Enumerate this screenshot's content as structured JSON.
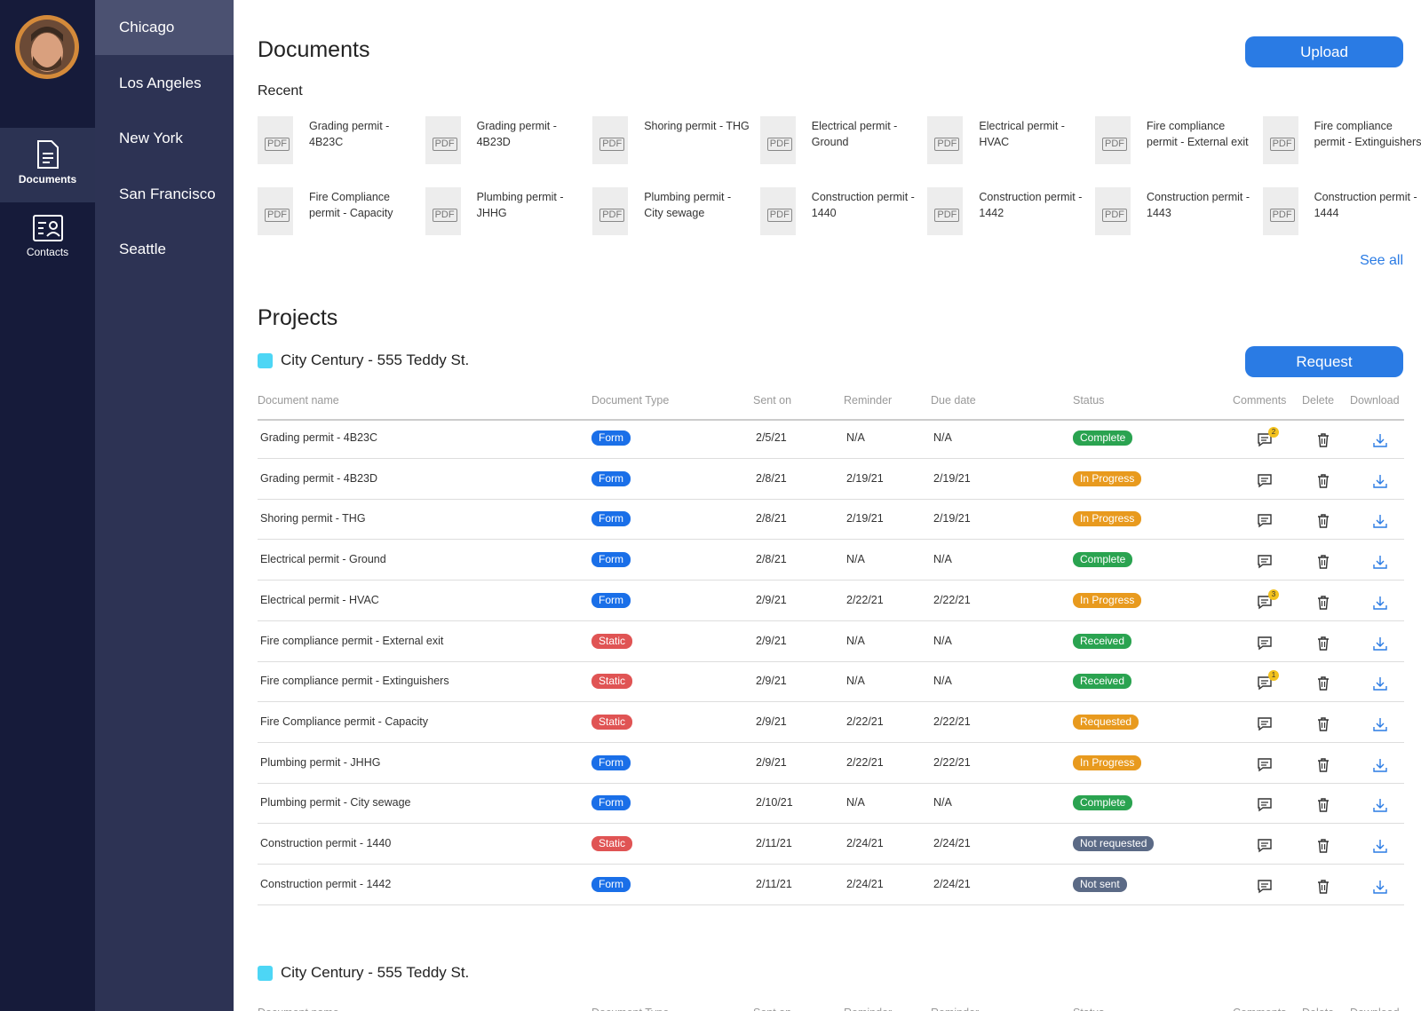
{
  "sidebar": {
    "nav": [
      "Documents",
      "Contacts"
    ],
    "cities": [
      "Chicago",
      "Los Angeles",
      "New York",
      "San Francisco",
      "Seattle"
    ]
  },
  "documents": {
    "title": "Documents",
    "upload": "Upload",
    "recent_label": "Recent",
    "pdf_label": "PDF",
    "see_all": "See all",
    "recent": [
      "Grading permit - 4B23C",
      "Grading permit - 4B23D",
      "Shoring permit - THG",
      "Electrical permit - Ground",
      "Electrical permit - HVAC",
      "Fire compliance permit - External exit",
      "Fire compliance permit - Extinguishers",
      "Fire Compliance permit - Capacity",
      "Plumbing permit - JHHG",
      "Plumbing permit - City sewage",
      "Construction permit - 1440",
      "Construction permit - 1442",
      "Construction permit - 1443",
      "Construction permit - 1444"
    ]
  },
  "projects": {
    "title": "Projects",
    "request": "Request",
    "groups": [
      {
        "name": "City Century - 555 Teddy St.",
        "columns": [
          "Document name",
          "Document Type",
          "Sent on",
          "Reminder",
          "Due date",
          "Status",
          "Comments",
          "Delete",
          "Download"
        ],
        "rows": [
          {
            "name": "Grading permit - 4B23C",
            "type": "Form",
            "sent_on": "2/5/21",
            "reminder": "N/A",
            "due_date": "N/A",
            "status": "Complete",
            "comments": 2
          },
          {
            "name": "Grading permit - 4B23D",
            "type": "Form",
            "sent_on": "2/8/21",
            "reminder": "2/19/21",
            "due_date": "2/19/21",
            "status": "In Progress"
          },
          {
            "name": "Shoring permit - THG",
            "type": "Form",
            "sent_on": "2/8/21",
            "reminder": "2/19/21",
            "due_date": "2/19/21",
            "status": "In Progress"
          },
          {
            "name": "Electrical permit - Ground",
            "type": "Form",
            "sent_on": "2/8/21",
            "reminder": "N/A",
            "due_date": "N/A",
            "status": "Complete"
          },
          {
            "name": "Electrical permit - HVAC",
            "type": "Form",
            "sent_on": "2/9/21",
            "reminder": "2/22/21",
            "due_date": "2/22/21",
            "status": "In Progress",
            "comments": 3
          },
          {
            "name": "Fire compliance permit - External exit",
            "type": "Static",
            "sent_on": "2/9/21",
            "reminder": "N/A",
            "due_date": "N/A",
            "status": "Received"
          },
          {
            "name": "Fire compliance permit - Extinguishers",
            "type": "Static",
            "sent_on": "2/9/21",
            "reminder": "N/A",
            "due_date": "N/A",
            "status": "Received",
            "comments": 1
          },
          {
            "name": "Fire Compliance permit - Capacity",
            "type": "Static",
            "sent_on": "2/9/21",
            "reminder": "2/22/21",
            "due_date": "2/22/21",
            "status": "Requested"
          },
          {
            "name": "Plumbing permit - JHHG",
            "type": "Form",
            "sent_on": "2/9/21",
            "reminder": "2/22/21",
            "due_date": "2/22/21",
            "status": "In Progress"
          },
          {
            "name": "Plumbing permit - City sewage",
            "type": "Form",
            "sent_on": "2/10/21",
            "reminder": "N/A",
            "due_date": "N/A",
            "status": "Complete"
          },
          {
            "name": "Construction permit - 1440",
            "type": "Static",
            "sent_on": "2/11/21",
            "reminder": "2/24/21",
            "due_date": "2/24/21",
            "status": "Not requested"
          },
          {
            "name": "Construction permit - 1442",
            "type": "Form",
            "sent_on": "2/11/21",
            "reminder": "2/24/21",
            "due_date": "2/24/21",
            "status": "Not sent"
          }
        ]
      },
      {
        "name": "City Century - 555 Teddy St.",
        "columns": [
          "Document name",
          "Document Type",
          "Sent on",
          "Reminder",
          "Reminder",
          "Status",
          "Comments",
          "Delete",
          "Download"
        ],
        "rows": []
      }
    ]
  }
}
